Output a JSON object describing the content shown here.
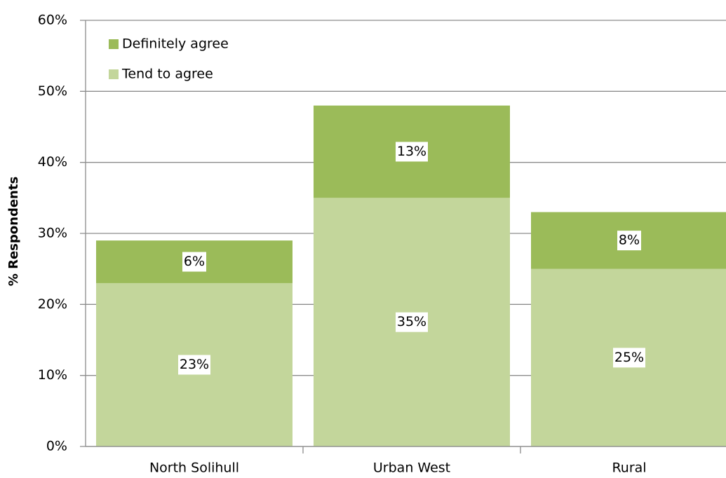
{
  "chart_data": {
    "type": "stacked_bar",
    "y_label": "% Respondents",
    "categories": [
      "North Solihull",
      "Urban West",
      "Rural"
    ],
    "series": [
      {
        "name": "Tend to agree",
        "color": "#c3d69b",
        "values": [
          23,
          35,
          25
        ],
        "value_labels": [
          "23%",
          "35%",
          "25%"
        ]
      },
      {
        "name": "Definitely agree",
        "color": "#9bbb59",
        "values": [
          6,
          13,
          8
        ],
        "value_labels": [
          "6%",
          "13%",
          "8%"
        ]
      }
    ],
    "ylim": [
      0,
      60
    ],
    "yticks": [
      {
        "value": 0,
        "label": "0%"
      },
      {
        "value": 10,
        "label": "10%"
      },
      {
        "value": 20,
        "label": "20%"
      },
      {
        "value": 30,
        "label": "30%"
      },
      {
        "value": 40,
        "label": "40%"
      },
      {
        "value": 50,
        "label": "50%"
      },
      {
        "value": 60,
        "label": "60%"
      }
    ],
    "grid": true
  }
}
